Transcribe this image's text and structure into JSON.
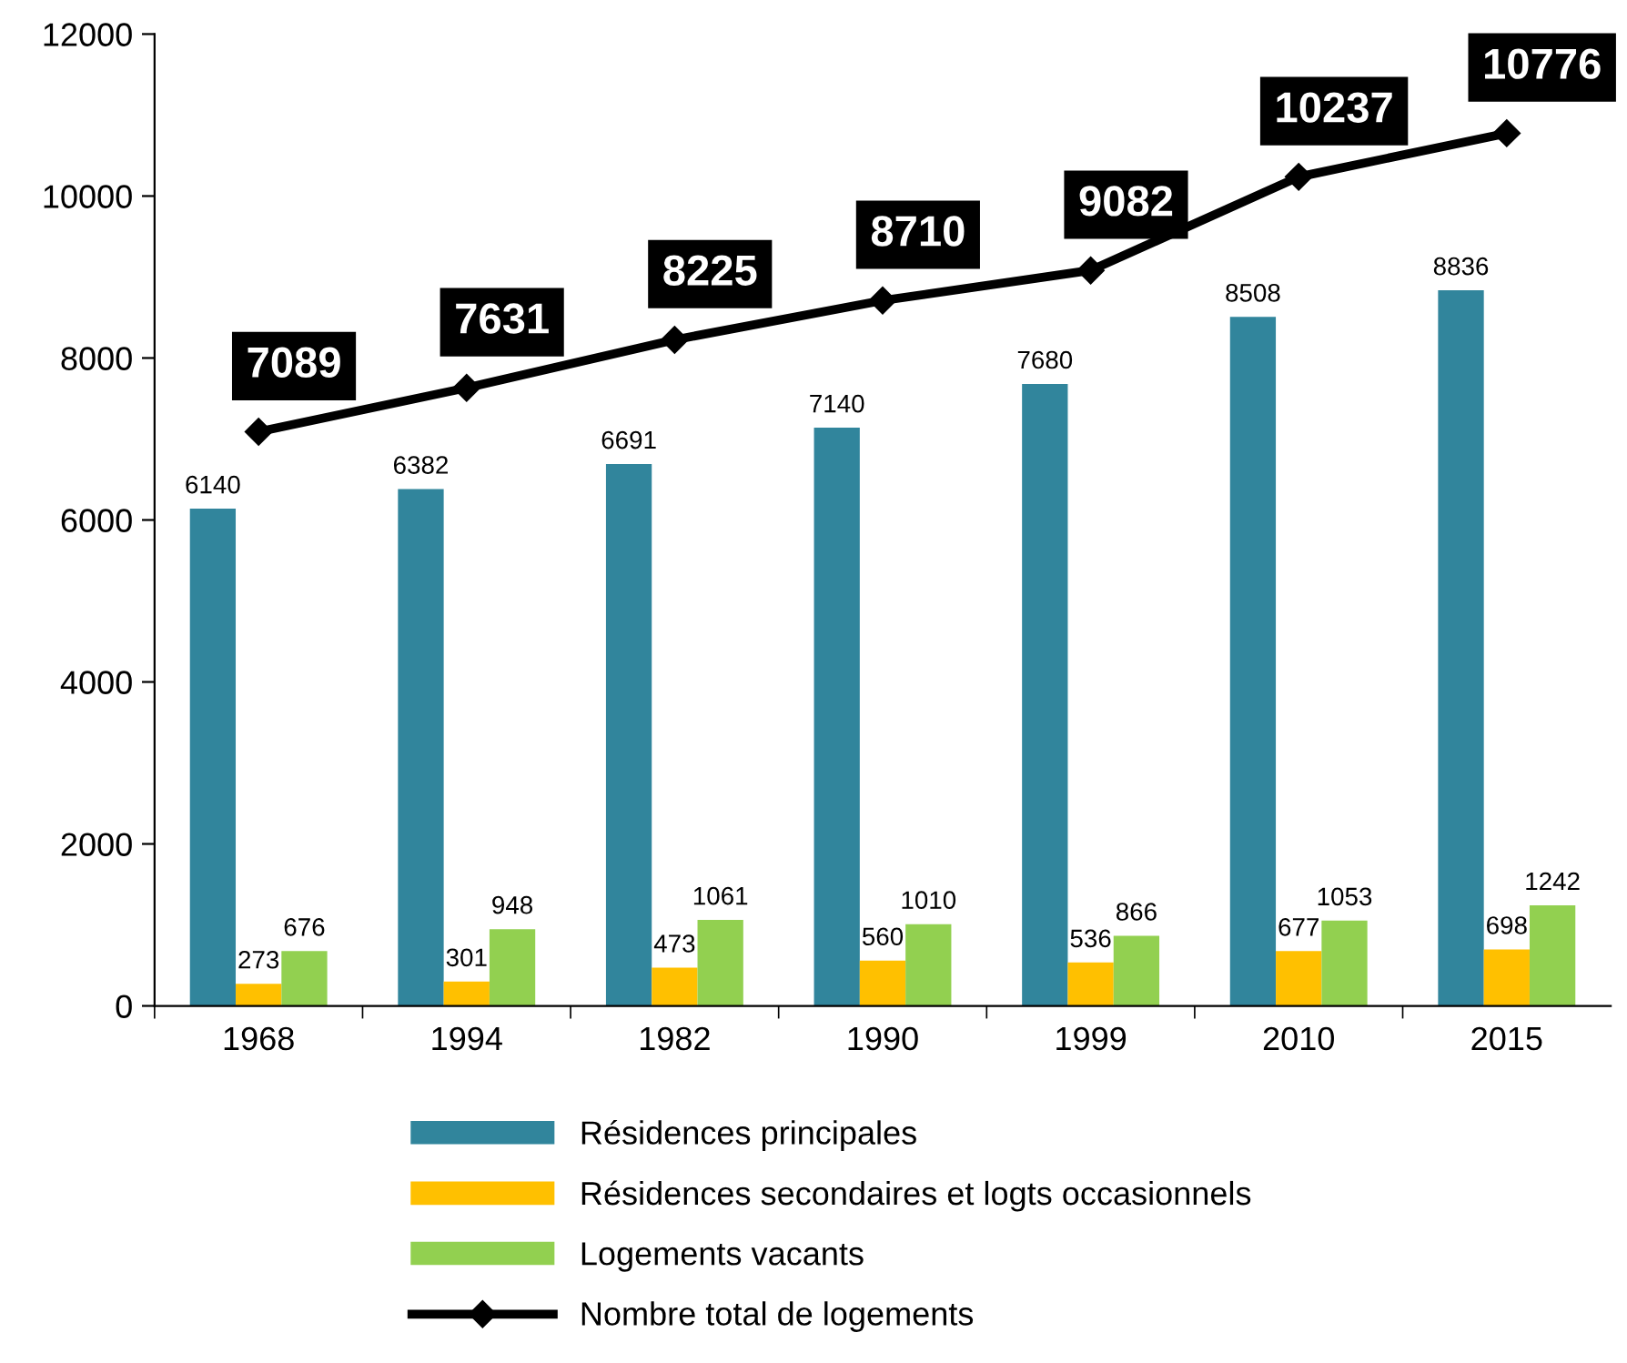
{
  "chart_data": {
    "type": "bar",
    "categories": [
      "1968",
      "1994",
      "1982",
      "1990",
      "1999",
      "2010",
      "2015"
    ],
    "series": [
      {
        "name": "Résidences principales",
        "color": "#31859c",
        "values": [
          6140,
          6382,
          6691,
          7140,
          7680,
          8508,
          8836
        ]
      },
      {
        "name": "Résidences secondaires et logts occasionnels",
        "color": "#ffc000",
        "values": [
          273,
          301,
          473,
          560,
          536,
          677,
          698
        ]
      },
      {
        "name": "Logements vacants",
        "color": "#92d050",
        "values": [
          676,
          948,
          1061,
          1010,
          866,
          1053,
          1242
        ]
      },
      {
        "name": "Nombre total de logements",
        "type": "line",
        "color": "#000000",
        "marker": "diamond",
        "line_style": "solid",
        "values": [
          7089,
          7631,
          8225,
          8710,
          9082,
          10237,
          10776
        ]
      }
    ],
    "ylim": [
      0,
      12000
    ],
    "yticks": [
      0,
      2000,
      4000,
      6000,
      8000,
      10000,
      12000
    ],
    "grid": false,
    "legend": "bottom",
    "data_labels": true
  }
}
